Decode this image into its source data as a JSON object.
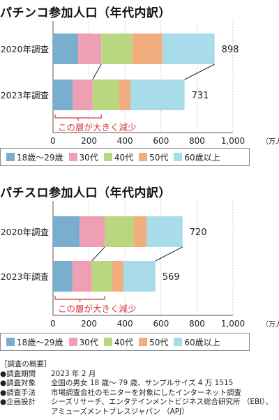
{
  "chart_data": [
    {
      "type": "bar",
      "orientation": "horizontal",
      "stacked": true,
      "title": "パチンコ参加人口（年代内訳）",
      "unit": "（万人）",
      "categories": [
        "2020年調査",
        "2023年調査"
      ],
      "series": [
        {
          "name": "18歳～29歳",
          "color": "#7aaecf",
          "values": [
            140,
            110
          ]
        },
        {
          "name": "30代",
          "color": "#ee9fb4",
          "values": [
            128,
            110
          ]
        },
        {
          "name": "40代",
          "color": "#b9d77e",
          "values": [
            173,
            145
          ]
        },
        {
          "name": "50代",
          "color": "#f2ad7e",
          "values": [
            167,
            65
          ]
        },
        {
          "name": "60歳以上",
          "color": "#a9dcea",
          "values": [
            290,
            301
          ]
        }
      ],
      "totals": [
        898,
        731
      ],
      "xlim": [
        0,
        1000
      ],
      "xticks": [
        "0",
        "200",
        "400",
        "600",
        "800",
        "1,000"
      ],
      "annotation": "この層が大きく減少",
      "annotation_range": [
        0,
        268
      ],
      "gridlines": true,
      "legend_position": "bottom"
    },
    {
      "type": "bar",
      "orientation": "horizontal",
      "stacked": true,
      "title": "パチスロ参加人口（年代内訳）",
      "unit": "（万人）",
      "categories": [
        "2020年調査",
        "2023年調査"
      ],
      "series": [
        {
          "name": "18歳～29歳",
          "color": "#7aaecf",
          "values": [
            148,
            108
          ]
        },
        {
          "name": "30代",
          "color": "#ee9fb4",
          "values": [
            140,
            108
          ]
        },
        {
          "name": "40代",
          "color": "#b9d77e",
          "values": [
            160,
            110
          ]
        },
        {
          "name": "50代",
          "color": "#f2ad7e",
          "values": [
            72,
            65
          ]
        },
        {
          "name": "60歳以上",
          "color": "#a9dcea",
          "values": [
            200,
            178
          ]
        }
      ],
      "totals": [
        720,
        569
      ],
      "xlim": [
        0,
        1000
      ],
      "xticks": [
        "0",
        "200",
        "400",
        "600",
        "800",
        "1,000"
      ],
      "annotation": "この層が大きく減少",
      "annotation_range": [
        0,
        288
      ],
      "gridlines": true,
      "legend_position": "bottom"
    }
  ],
  "survey": {
    "header": "［調査の概要］",
    "rows": [
      {
        "label": "●調査期間",
        "value": "2023 年 2 月"
      },
      {
        "label": "●調査対象",
        "value": "全国の男女 18 歳～ 79 歳、サンプルサイズ 4 万 1515"
      },
      {
        "label": "●調査手法",
        "value": "市場調査会社のモニターを対象にしたインターネット調査"
      },
      {
        "label": "●企画設計",
        "value": "シーズリサーチ、エンタテインメントビジネス総合研究所 （EBI）、"
      }
    ],
    "continuation": "アミューズメントプレスジャパン （APJ）"
  }
}
